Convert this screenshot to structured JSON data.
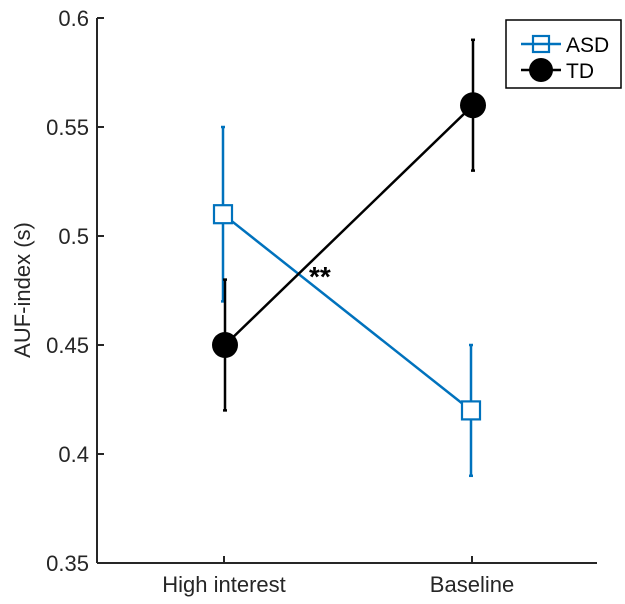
{
  "chart_data": {
    "type": "line",
    "categories": [
      "High interest",
      "Baseline"
    ],
    "ylabel": "AUF-index (s)",
    "ylim": [
      0.35,
      0.6
    ],
    "yticks": [
      "0.35",
      "0.4",
      "0.45",
      "0.5",
      "0.55",
      "0.6"
    ],
    "grid": false,
    "legend_position": "top-right",
    "annotation": "**",
    "series": [
      {
        "name": "ASD",
        "values": [
          0.51,
          0.42
        ],
        "error_low": [
          0.47,
          0.39
        ],
        "error_high": [
          0.55,
          0.45
        ],
        "color": "#0072BD",
        "marker": "square-open"
      },
      {
        "name": "TD",
        "values": [
          0.45,
          0.56
        ],
        "error_low": [
          0.42,
          0.53
        ],
        "error_high": [
          0.48,
          0.59
        ],
        "color": "#000000",
        "marker": "circle-filled"
      }
    ]
  }
}
